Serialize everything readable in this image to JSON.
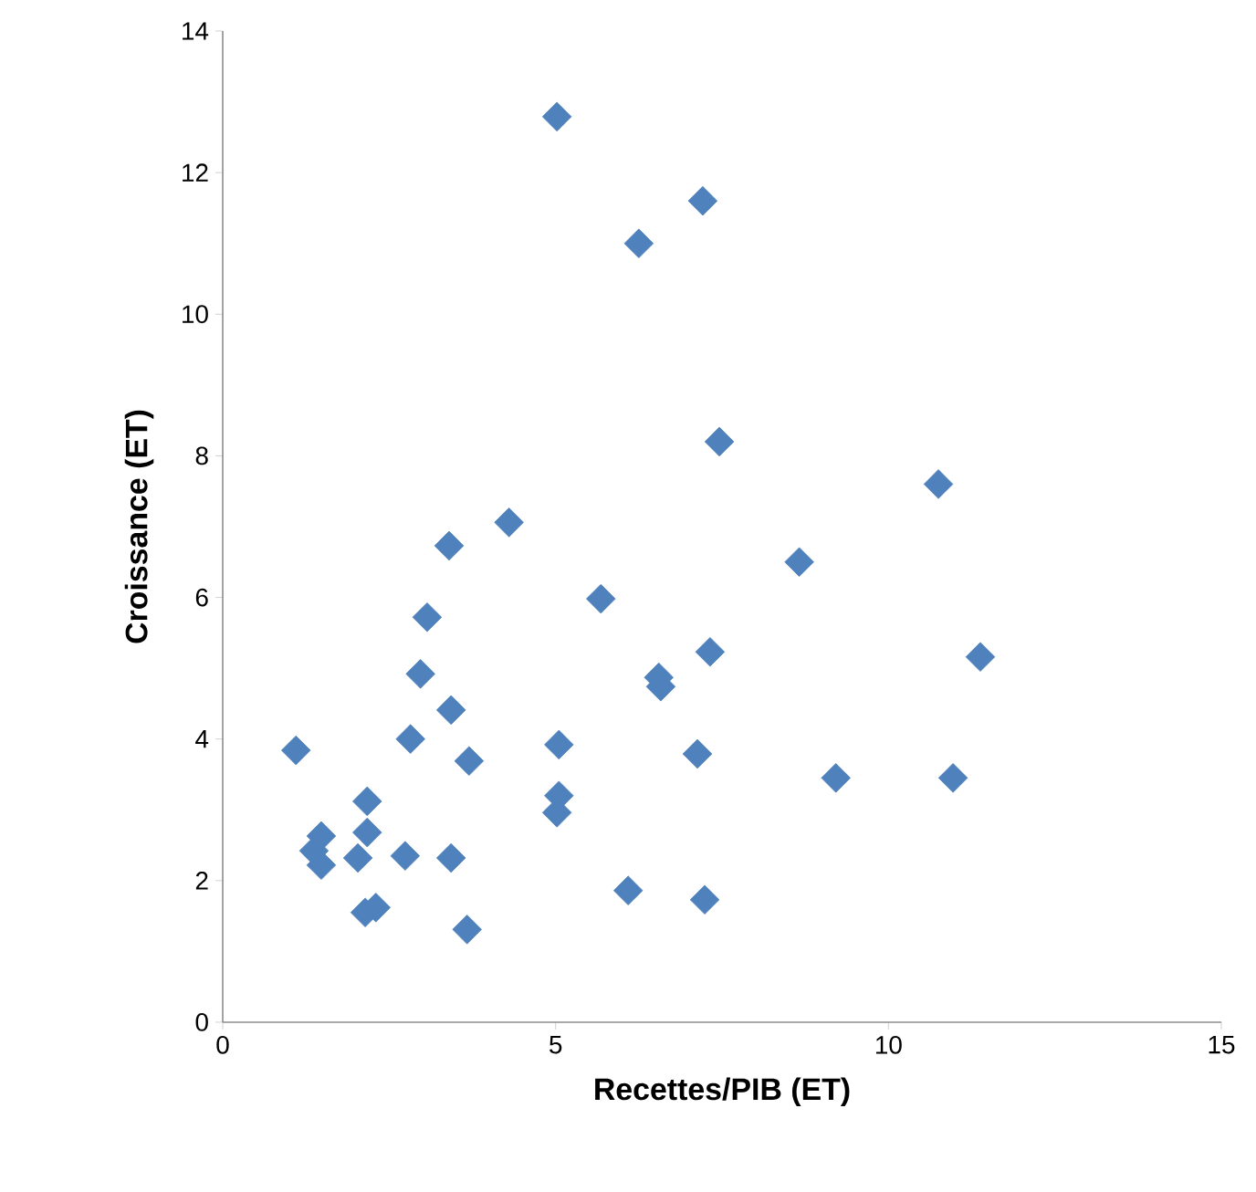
{
  "chart_data": {
    "type": "scatter",
    "xlabel": "Recettes/PIB (ET)",
    "ylabel": "Croissance (ET)",
    "xlim": [
      0,
      15
    ],
    "ylim": [
      0,
      14
    ],
    "xticks": [
      0,
      5,
      10,
      15
    ],
    "yticks": [
      0,
      2,
      4,
      6,
      8,
      10,
      12,
      14
    ],
    "marker": "diamond",
    "series": [
      {
        "color": "#4f81bd",
        "x": [
          5.02,
          7.21,
          6.25,
          7.46,
          10.75,
          4.3,
          3.4,
          8.66,
          5.68,
          3.07,
          7.32,
          11.38,
          2.97,
          6.55,
          6.58,
          3.43,
          1.1,
          2.82,
          5.05,
          7.13,
          3.7,
          9.21,
          10.97,
          2.17,
          5.05,
          5.02,
          1.48,
          2.17,
          1.37,
          2.03,
          2.74,
          3.43,
          1.48,
          6.09,
          7.24,
          2.3,
          2.14,
          3.67
        ],
        "values": [
          12.79,
          11.6,
          11.0,
          8.2,
          7.6,
          7.06,
          6.73,
          6.5,
          5.98,
          5.72,
          5.23,
          5.16,
          4.92,
          4.87,
          4.74,
          4.41,
          3.84,
          4.0,
          3.92,
          3.79,
          3.69,
          3.45,
          3.45,
          3.12,
          3.2,
          2.96,
          2.63,
          2.68,
          2.42,
          2.32,
          2.35,
          2.32,
          2.22,
          1.86,
          1.73,
          1.62,
          1.55,
          1.31
        ]
      }
    ]
  }
}
